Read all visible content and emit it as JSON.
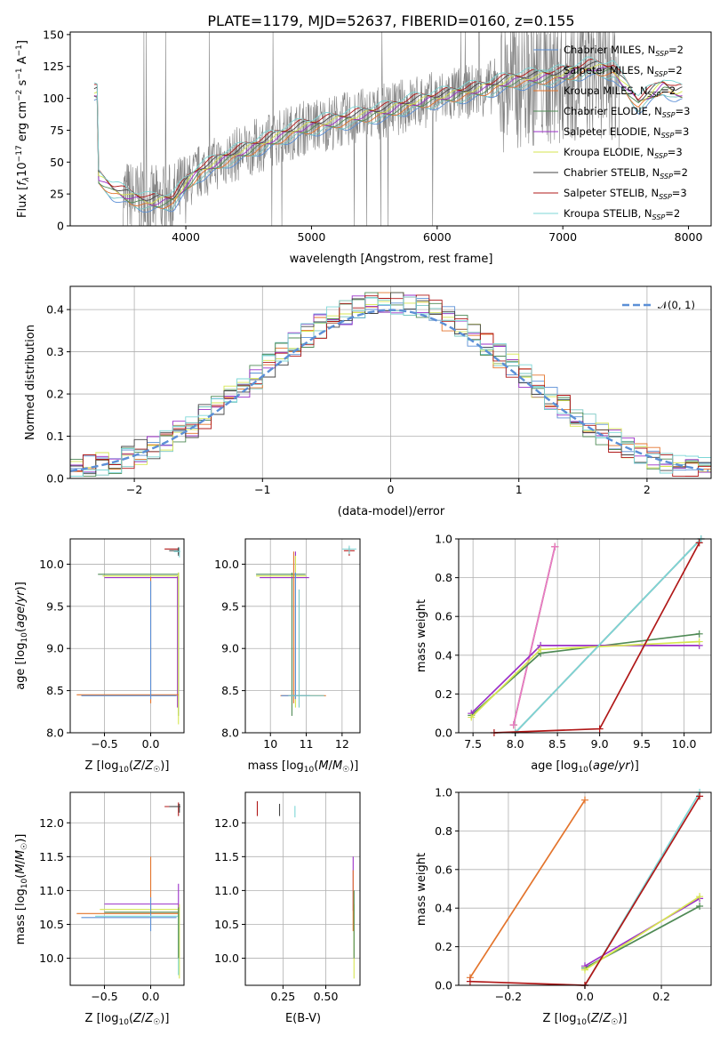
{
  "chart_data": [
    {
      "type": "line",
      "title": "PLATE=1179, MJD=52637, FIBERID=0160, z=0.155",
      "xlabel": "wavelength [Angstrom, rest frame]",
      "ylabel": "Flux [f_λ 10^-17 erg cm^-2 s^-1 A^-1]",
      "xlim": [
        3080,
        8180
      ],
      "ylim": [
        0,
        152
      ],
      "xticks": [
        "4000",
        "5000",
        "6000",
        "7000",
        "8000"
      ],
      "yticks": [
        "0",
        "25",
        "50",
        "75",
        "100",
        "125",
        "150"
      ],
      "legend_position": "top-right",
      "series": [
        {
          "name": "Chabrier MILES, N_SSP=2",
          "color": "#5b8fd6"
        },
        {
          "name": "Salpeter MILES, N_SSP=2",
          "color": "#79c7c2"
        },
        {
          "name": "Kroupa MILES, N_SSP=2",
          "color": "#e3742c"
        },
        {
          "name": "Chabrier ELODIE, N_SSP=3",
          "color": "#4f8a55"
        },
        {
          "name": "Salpeter ELODIE, N_SSP=3",
          "color": "#9b30c8"
        },
        {
          "name": "Kroupa ELODIE, N_SSP=3",
          "color": "#d6e650"
        },
        {
          "name": "Chabrier STELIB, N_SSP=2",
          "color": "#444444"
        },
        {
          "name": "Salpeter STELIB, N_SSP=3",
          "color": "#b01818"
        },
        {
          "name": "Kroupa STELIB, N_SSP=2",
          "color": "#7dd7d7"
        }
      ],
      "observed_spectrum": {
        "color": "#808080",
        "x_range": [
          3500,
          7450
        ]
      },
      "model_continuum": {
        "x": [
          3300,
          3420,
          3560,
          3720,
          3900,
          4000,
          4100,
          4300,
          4500,
          4700,
          4900,
          5000,
          5200,
          5400,
          5600,
          5800,
          6000,
          6200,
          6400,
          6600,
          6800,
          7000,
          7200,
          7400,
          7600,
          7800,
          7900
        ],
        "y": [
          38,
          28,
          22,
          18,
          20,
          32,
          42,
          52,
          60,
          68,
          76,
          78,
          82,
          86,
          90,
          96,
          100,
          104,
          108,
          114,
          116,
          118,
          124,
          122,
          96,
          110,
          104
        ]
      }
    },
    {
      "type": "line",
      "xlabel": "(data-model)/error",
      "ylabel": "Normed distribution",
      "xlim": [
        -2.5,
        2.5
      ],
      "ylim": [
        0,
        0.455
      ],
      "xticks": [
        "−2",
        "−1",
        "0",
        "1",
        "2"
      ],
      "yticks": [
        "0.0",
        "0.1",
        "0.2",
        "0.3",
        "0.4"
      ],
      "legend": "𝒩(0, 1)",
      "legend_position": "top-right",
      "gaussian_color": "#5b8fd6",
      "histogram_bin_width": 0.1
    },
    {
      "type": "scatter",
      "xlabel": "Z [log10(Z/Z☉)]",
      "ylabel": "age  [log10(age/yr)]",
      "xlim": [
        -0.87,
        0.36
      ],
      "ylim": [
        8.0,
        10.3
      ],
      "xticks": [
        "−0.5",
        "0.0"
      ],
      "yticks": [
        "8.0",
        "8.5",
        "9.0",
        "9.5",
        "10.0"
      ]
    },
    {
      "type": "scatter",
      "xlabel": "mass [log10(M/M☉)]",
      "ylabel": "",
      "xlim": [
        9.3,
        12.5
      ],
      "ylim": [
        8.0,
        10.3
      ],
      "xticks": [
        "10",
        "11",
        "12"
      ],
      "yticks": [
        "8.0",
        "8.5",
        "9.0",
        "9.5",
        "10.0"
      ]
    },
    {
      "type": "line",
      "xlabel": "age  [log10(age/yr)]",
      "ylabel": "mass weight",
      "xlim": [
        7.33,
        10.32
      ],
      "ylim": [
        0,
        1
      ],
      "xticks": [
        "7.5",
        "8.0",
        "8.5",
        "9.0",
        "9.5",
        "10.0"
      ],
      "yticks": [
        "0.0",
        "0.2",
        "0.4",
        "0.6",
        "0.8",
        "1.0"
      ],
      "series": [
        {
          "color": "#5b8fd6",
          "x": [
            7.98,
            8.47
          ],
          "y": [
            0.04,
            0.96
          ]
        },
        {
          "color": "#e3742c",
          "x": [
            7.98,
            8.47
          ],
          "y": [
            0.04,
            0.96
          ]
        },
        {
          "color": "#e87cc8",
          "x": [
            7.98,
            8.47
          ],
          "y": [
            0.04,
            0.96
          ]
        },
        {
          "color": "#4f8a55",
          "x": [
            7.48,
            8.3,
            10.18
          ],
          "y": [
            0.09,
            0.41,
            0.51
          ]
        },
        {
          "color": "#9b30c8",
          "x": [
            7.48,
            8.3,
            10.18
          ],
          "y": [
            0.1,
            0.45,
            0.45
          ]
        },
        {
          "color": "#d6e650",
          "x": [
            7.48,
            8.3,
            10.18
          ],
          "y": [
            0.08,
            0.43,
            0.47
          ]
        },
        {
          "color": "#444444",
          "x": [
            8.0,
            10.2
          ],
          "y": [
            0.0,
            1.0
          ]
        },
        {
          "color": "#7dd7d7",
          "x": [
            8.0,
            10.2
          ],
          "y": [
            0.0,
            1.0
          ]
        },
        {
          "color": "#b01818",
          "x": [
            7.75,
            9.0,
            10.18
          ],
          "y": [
            0.0,
            0.02,
            0.98
          ]
        }
      ]
    },
    {
      "type": "scatter",
      "xlabel": "Z [log10(Z/Z☉)]",
      "ylabel": "mass [log10(M/M☉)]",
      "xlim": [
        -0.87,
        0.36
      ],
      "ylim": [
        9.6,
        12.45
      ],
      "xticks": [
        "−0.5",
        "0.0"
      ],
      "yticks": [
        "10.0",
        "10.5",
        "11.0",
        "11.5",
        "12.0"
      ]
    },
    {
      "type": "scatter",
      "xlabel": "E(B-V)",
      "ylabel": "",
      "xlim": [
        0.03,
        0.7
      ],
      "ylim": [
        9.6,
        12.45
      ],
      "xticks": [
        "0.25",
        "0.50"
      ],
      "yticks": [
        "10.0",
        "10.5",
        "11.0",
        "11.5",
        "12.0"
      ]
    },
    {
      "type": "line",
      "xlabel": "Z [log10(Z/Z☉)]",
      "ylabel": "mass weight",
      "xlim": [
        -0.33,
        0.33
      ],
      "ylim": [
        0,
        1
      ],
      "xticks": [
        "−0.2",
        "0.0",
        "0.2"
      ],
      "yticks": [
        "0.0",
        "0.2",
        "0.4",
        "0.6",
        "0.8",
        "1.0"
      ],
      "series": [
        {
          "color": "#e3742c",
          "x": [
            -0.3,
            0.0
          ],
          "y": [
            0.04,
            0.96
          ]
        },
        {
          "color": "#b01818",
          "x": [
            -0.3,
            0.0
          ],
          "y": [
            0.02,
            0.0
          ]
        },
        {
          "color": "#4f8a55",
          "x": [
            0.0,
            0.3
          ],
          "y": [
            0.09,
            0.41
          ]
        },
        {
          "color": "#9b30c8",
          "x": [
            0.0,
            0.3
          ],
          "y": [
            0.1,
            0.45
          ]
        },
        {
          "color": "#d6e650",
          "x": [
            0.0,
            0.3
          ],
          "y": [
            0.08,
            0.46
          ]
        },
        {
          "color": "#7dd7d7",
          "x": [
            0.0,
            0.3
          ],
          "y": [
            0.0,
            1.0
          ]
        },
        {
          "color": "#b01818",
          "x": [
            0.0,
            0.3
          ],
          "y": [
            0.0,
            0.98
          ]
        }
      ]
    }
  ]
}
